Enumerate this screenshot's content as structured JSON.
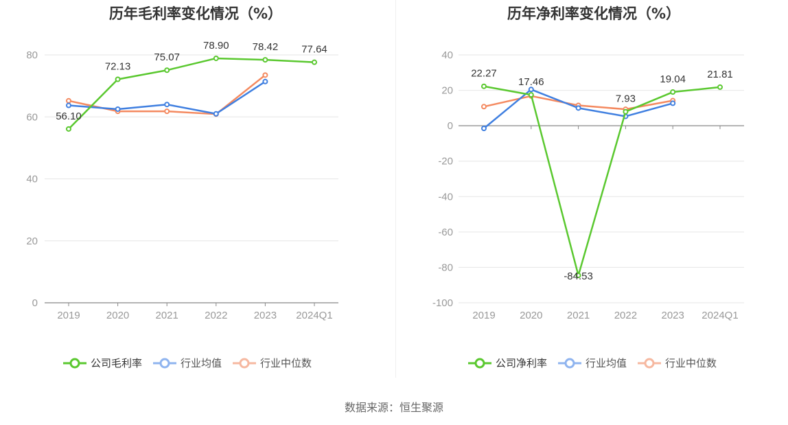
{
  "colors": {
    "company": "#5ac82f",
    "avg": "#3f7fe0",
    "median": "#f4895f",
    "grid": "#e6e6e6",
    "axis": "#888888",
    "tick_text": "#999999",
    "label_text": "#333333"
  },
  "legend_icons": [
    "ring-line-icon",
    "ring-line-icon",
    "ring-line-icon"
  ],
  "source": "数据来源：恒生聚源",
  "chart_data": [
    {
      "type": "line",
      "title": "历年毛利率变化情况（%）",
      "categories": [
        "2019",
        "2020",
        "2021",
        "2022",
        "2023",
        "2024Q1"
      ],
      "ylim": [
        0,
        80
      ],
      "yticks": [
        0,
        20,
        40,
        60,
        80
      ],
      "grid": true,
      "legend_position": "bottom",
      "series": [
        {
          "name": "公司毛利率",
          "key": "company",
          "values": [
            56.1,
            72.13,
            75.07,
            78.9,
            78.42,
            77.64
          ],
          "labels": [
            "56.10",
            "72.13",
            "75.07",
            "78.90",
            "78.42",
            "77.64"
          ]
        },
        {
          "name": "行业均值",
          "key": "avg",
          "values": [
            63.7,
            62.5,
            64.0,
            61.0,
            71.4,
            null
          ]
        },
        {
          "name": "行业中位数",
          "key": "median",
          "values": [
            65.2,
            61.8,
            61.8,
            60.9,
            73.5,
            null
          ]
        }
      ]
    },
    {
      "type": "line",
      "title": "历年净利率变化情况（%）",
      "categories": [
        "2019",
        "2020",
        "2021",
        "2022",
        "2023",
        "2024Q1"
      ],
      "ylim": [
        -100,
        40
      ],
      "yticks": [
        -100,
        -80,
        -60,
        -40,
        -20,
        0,
        20,
        40
      ],
      "grid": true,
      "legend_position": "bottom",
      "series": [
        {
          "name": "公司净利率",
          "key": "company",
          "values": [
            22.27,
            17.46,
            -84.53,
            7.93,
            19.04,
            21.81
          ],
          "labels": [
            "22.27",
            "17.46",
            "-84.53",
            "7.93",
            "19.04",
            "21.81"
          ]
        },
        {
          "name": "行业均值",
          "key": "avg",
          "values": [
            -1.5,
            20.5,
            10.0,
            5.3,
            12.7,
            null
          ]
        },
        {
          "name": "行业中位数",
          "key": "median",
          "values": [
            10.8,
            16.8,
            11.5,
            9.3,
            14.2,
            null
          ]
        }
      ]
    }
  ]
}
